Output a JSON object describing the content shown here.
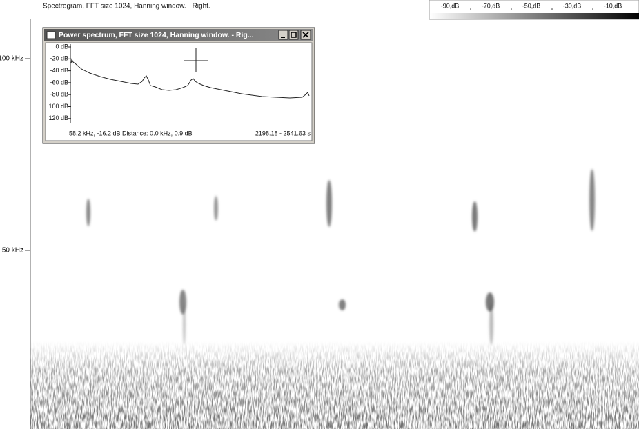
{
  "header": {
    "title": "Spectrogram, FFT size 1024, Hanning window. - Right."
  },
  "colorbar": {
    "labels": [
      "-90,dB",
      "-70,dB",
      "-50,dB",
      "-30,dB",
      "-10,dB"
    ]
  },
  "axis": {
    "labels": [
      "100 kHz",
      "50 kHz"
    ]
  },
  "popup": {
    "title": "Power spectrum, FFT size 1024, Hanning window. - Rig...",
    "y_labels": [
      "0 dB",
      "-20 dB",
      "-40 dB",
      "-60 dB",
      "-80 dB",
      "100 dB",
      "120 dB"
    ],
    "cursor_readout": "58.2 kHz, -16.2 dB Distance: 0.0 kHz, 0.9 dB",
    "time_range": "2198.18 - 2541.63 s"
  }
}
